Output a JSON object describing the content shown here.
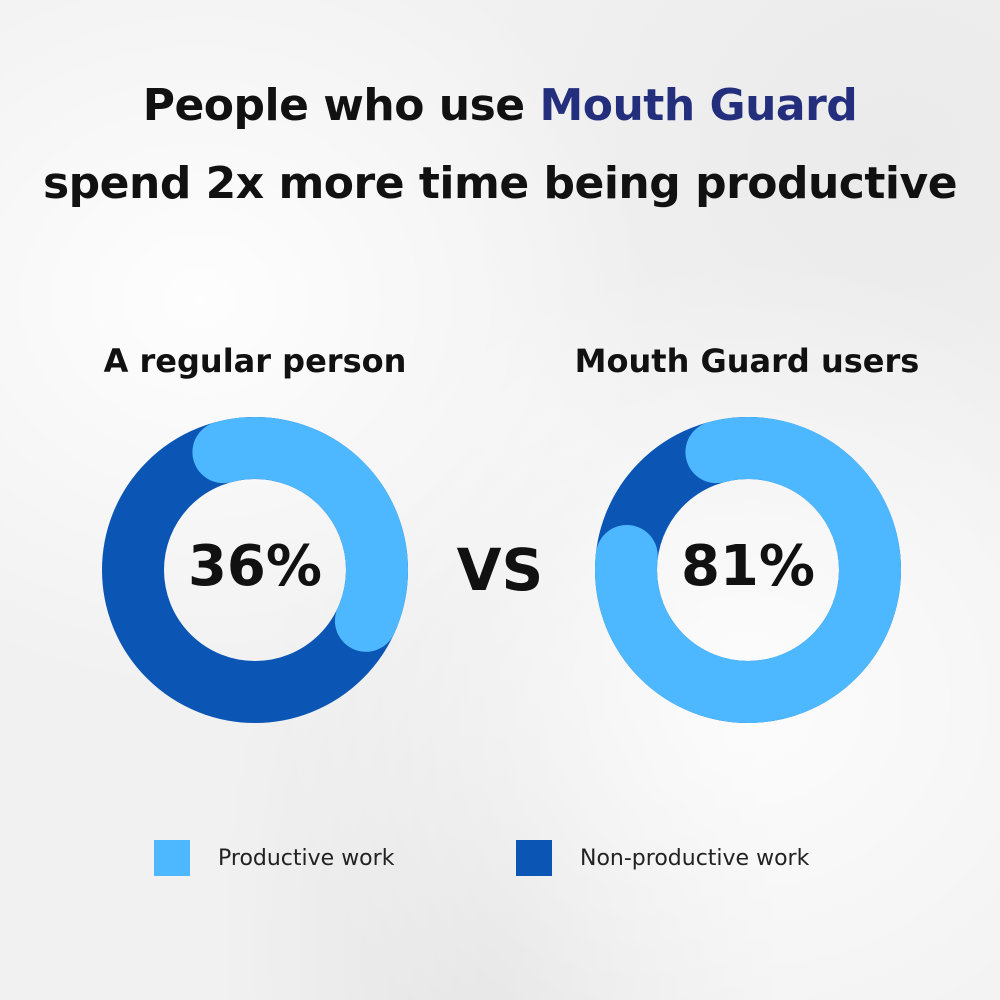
{
  "headline": {
    "line1_prefix": "People who use ",
    "line1_brand": "Mouth Guard",
    "line2": "spend 2x more time being productive"
  },
  "comparison_word": "VS",
  "colors": {
    "productive": "#4db8ff",
    "non_productive": "#0b55b5",
    "brand_text": "#232f7d"
  },
  "chart_data": [
    {
      "type": "pie",
      "title": "A regular person",
      "center_label": "36%",
      "slices": [
        {
          "label": "Productive work",
          "value": 36
        },
        {
          "label": "Non-productive work",
          "value": 64
        }
      ]
    },
    {
      "type": "pie",
      "title": "Mouth Guard users",
      "center_label": "81%",
      "slices": [
        {
          "label": "Productive work",
          "value": 81
        },
        {
          "label": "Non-productive work",
          "value": 19
        }
      ]
    }
  ],
  "legend": [
    {
      "label": "Productive work",
      "color": "#4db8ff"
    },
    {
      "label": "Non-productive work",
      "color": "#0b55b5"
    }
  ]
}
